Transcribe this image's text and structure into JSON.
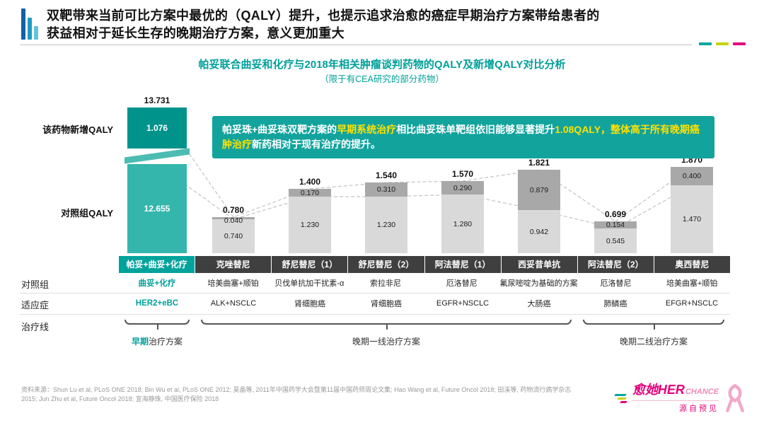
{
  "colors": {
    "teal": "#00a09a",
    "teal_bar_dark": "#00938c",
    "teal_bar_light": "#34b6ac",
    "magenta": "#e5007d",
    "highlight_yellow": "#ffe100",
    "bar_gray_dark": "#a8a8a8",
    "bar_gray_light": "#d9d9d9",
    "table_header_bg": "#3f3f3f",
    "accent_dashes": [
      "#00a79f",
      "#c5d300",
      "#e5007d"
    ]
  },
  "header": {
    "title_line1": "双靶带来当前可比方案中最优的（QALY）提升，也提示追求治愈的癌症早期治疗方案带给患者的",
    "title_line2": "获益相对于延长生存的晚期治疗方案，意义更加重大"
  },
  "chart": {
    "title_line1": "帕妥联合曲妥和化疗与2018年相关肿瘤谈判药物的QALY及新增QALY对比分析",
    "title_line2": "（限于有CEA研究的部分药物）",
    "axis_label_new": "该药物新增QALY",
    "axis_label_control": "对照组QALY"
  },
  "callout": {
    "segments": [
      {
        "text": "帕妥珠+曲妥珠双靶方案的",
        "highlight": false
      },
      {
        "text": "早期系统治疗",
        "highlight": true
      },
      {
        "text": "相比曲妥珠单靶组依旧能够显著提升",
        "highlight": false
      },
      {
        "text": "1.08QALY，整体高于所有晚期癌肿治疗",
        "highlight": true
      },
      {
        "text": "新药相对于现有治疗的提升。",
        "highlight": false
      }
    ]
  },
  "chart_data": {
    "type": "bar",
    "stacked": true,
    "unit": "QALY",
    "grid": false,
    "legend_position": "none",
    "axis_break_on_first_bar": true,
    "title": "帕妥联合曲妥和化疗与2018年相关肿瘤谈判药物的QALY及新增QALY对比分析",
    "subtitle": "（限于有CEA研究的部分药物）",
    "categories": [
      "帕妥+曲妥+化疗",
      "克唑替尼",
      "舒尼替尼（1）",
      "舒尼替尼（2）",
      "阿法替尼（1）",
      "西妥昔单抗",
      "阿法替尼（2）",
      "奥西替尼"
    ],
    "series": [
      {
        "name": "对照组QALY",
        "values": [
          12.655,
          0.74,
          1.23,
          1.23,
          1.28,
          0.942,
          0.545,
          1.47
        ]
      },
      {
        "name": "该药物新增QALY",
        "values": [
          1.076,
          0.04,
          0.17,
          0.31,
          0.29,
          0.879,
          0.154,
          0.4
        ]
      }
    ],
    "totals": [
      "13.731",
      "0.780",
      "1.400",
      "1.540",
      "1.570",
      "1.821",
      "0.699",
      "1.870"
    ]
  },
  "table": {
    "row_labels": [
      "对照组",
      "适应症",
      "治疗线"
    ],
    "control_row": [
      "曲妥+化疗",
      "培美曲塞+顺铂",
      "贝伐单抗加干扰素-α",
      "索拉非尼",
      "厄洛替尼",
      "氟尿嘧啶为基础的方案",
      "厄洛替尼",
      "培美曲塞+顺铂"
    ],
    "indication_row": [
      "HER2+eBC",
      "ALK+NSCLC",
      "肾细胞癌",
      "肾细胞癌",
      "EGFR+NSCLC",
      "大肠癌",
      "肺鳞癌",
      "EFGR+NSCLC"
    ],
    "brackets": [
      {
        "from": 0,
        "to": 0,
        "label": "早期治疗方案",
        "highlight_prefix": "早期"
      },
      {
        "from": 1,
        "to": 5,
        "label": "晚期一线治疗方案"
      },
      {
        "from": 6,
        "to": 7,
        "label": "晚期二线治疗方案"
      }
    ]
  },
  "footer": {
    "source": "资料来源：Shun Lu et al, PLoS ONE 2018; Bin Wu et al, PLoS ONE 2012; 吴晶等, 2011年中国药学大会暨第11届中国药师周论文集; Hao Wang et al, Future Oncol 2018; 田溪等, 药物流行病学杂志 2015; Jun Zhu et al, Future Oncol 2018; 宜海静珠, 中国医疗保险 2018"
  },
  "logo": {
    "brand_cn": "愈她",
    "brand_en": "HER",
    "brand_en2": "CHANCE",
    "tagline": "源自预见"
  }
}
